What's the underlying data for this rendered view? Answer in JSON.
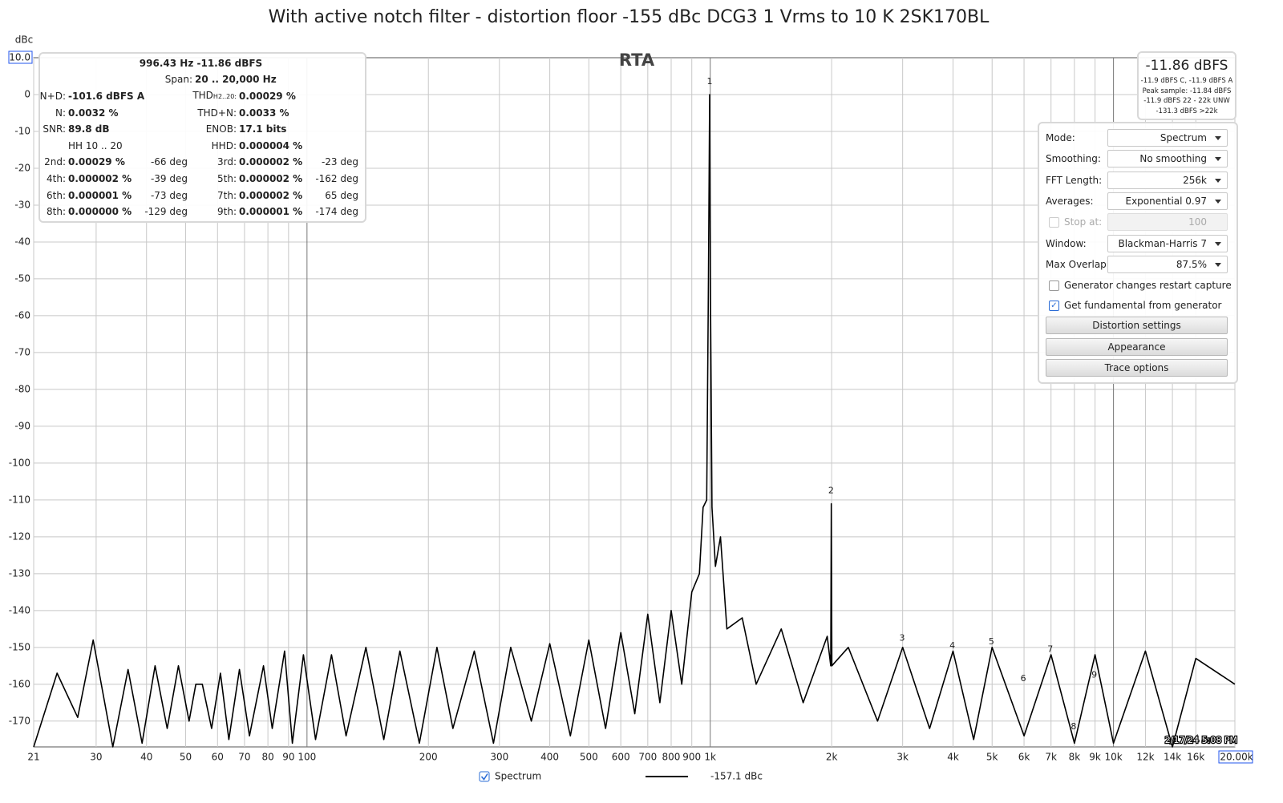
{
  "title": "With active notch filter - distortion floor -155 dBc DCG3 1 Vrms to  10 K  2SK170BL",
  "rta_label": "RTA",
  "timestamp": "2/17/24 5:08 PM",
  "chart_data": {
    "type": "line",
    "ylabel": "dBc",
    "log_x": true,
    "grid": true,
    "xlim": [
      21,
      20000
    ],
    "ylim": [
      -177,
      10
    ],
    "xticks": [
      21,
      30,
      40,
      50,
      60,
      70,
      80,
      90,
      100,
      200,
      300,
      400,
      500,
      600,
      700,
      800,
      900,
      {
        "value": 1000,
        "label": "1k"
      },
      {
        "value": 2000,
        "label": "2k"
      },
      {
        "value": 3000,
        "label": "3k"
      },
      {
        "value": 4000,
        "label": "4k"
      },
      {
        "value": 5000,
        "label": "5k"
      },
      {
        "value": 6000,
        "label": "6k"
      },
      {
        "value": 7000,
        "label": "7k"
      },
      {
        "value": 8000,
        "label": "8k"
      },
      {
        "value": 9000,
        "label": "9k"
      },
      {
        "value": 10000,
        "label": "10k"
      },
      {
        "value": 12000,
        "label": "12k"
      },
      {
        "value": 14000,
        "label": "14k"
      },
      {
        "value": 16000,
        "label": "16k"
      },
      {
        "value": 20000,
        "label": "20.00k"
      }
    ],
    "yticks": [
      {
        "value": 10,
        "label": "10.0"
      },
      0,
      -10,
      -20,
      -30,
      -40,
      -50,
      -60,
      -70,
      -80,
      -90,
      -100,
      -110,
      -120,
      -130,
      -140,
      -150,
      -160,
      -170
    ],
    "x": [
      21,
      24,
      27,
      29.5,
      33,
      36,
      39,
      42,
      45,
      48,
      51,
      53,
      55,
      58,
      61,
      64,
      68,
      72,
      78,
      82,
      88,
      92,
      98,
      105,
      115,
      125,
      140,
      155,
      170,
      190,
      210,
      230,
      260,
      290,
      320,
      360,
      400,
      450,
      500,
      550,
      600,
      650,
      700,
      750,
      800,
      850,
      900,
      940,
      960,
      980,
      990,
      996.43,
      1002,
      1010,
      1030,
      1060,
      1100,
      1200,
      1300,
      1500,
      1700,
      1950,
      1990,
      1996,
      2003,
      2200,
      2600,
      3000,
      3500,
      4000,
      4500,
      5000,
      6000,
      7000,
      8000,
      9000,
      10000,
      12000,
      14000,
      16000,
      20000
    ],
    "series": [
      {
        "name": "Spectrum",
        "color": "#000000",
        "legend_value": "-157.1 dBc",
        "values": [
          -177,
          -157,
          -169,
          -148,
          -177,
          -156,
          -176,
          -155,
          -172,
          -155,
          -170,
          -160,
          -160,
          -172,
          -157,
          -175,
          -156,
          -174,
          -155,
          -172,
          -151,
          -176,
          -152,
          -175,
          -152,
          -174,
          -150,
          -175,
          -151,
          -176,
          -150,
          -172,
          -151,
          -176,
          -150,
          -170,
          -149,
          -174,
          -148,
          -172,
          -146,
          -168,
          -141,
          -165,
          -140,
          -160,
          -135,
          -130,
          -112,
          -110,
          -50,
          0,
          -60,
          -112,
          -128,
          -120,
          -145,
          -142,
          -160,
          -145,
          -165,
          -147,
          -155,
          -111,
          -155,
          -150,
          -170,
          -150,
          -172,
          -151,
          -175,
          -150,
          -174,
          -152,
          -176,
          -152,
          -176,
          -151,
          -177,
          -153,
          -160
        ]
      }
    ],
    "harmonic_markers": [
      {
        "label": "1",
        "x": 996.43,
        "y": 3
      },
      {
        "label": "2",
        "x": 1993,
        "y": -108
      },
      {
        "label": "3",
        "x": 2990,
        "y": -148
      },
      {
        "label": "4",
        "x": 3985,
        "y": -150
      },
      {
        "label": "5",
        "x": 4980,
        "y": -149
      },
      {
        "label": "6",
        "x": 5975,
        "y": -159
      },
      {
        "label": "7",
        "x": 6970,
        "y": -151
      },
      {
        "label": "8",
        "x": 7965,
        "y": -172
      },
      {
        "label": "9",
        "x": 8960,
        "y": -158
      }
    ]
  },
  "readout": {
    "value": "-11.86 dBFS",
    "lines": [
      "-11.9 dBFS C, -11.9 dBFS A",
      "Peak sample: -11.84 dBFS",
      "-11.9 dBFS 22 - 22k UNW",
      "-131.3 dBFS >22k"
    ]
  },
  "info_panel": {
    "header": "996.43 Hz  -11.86 dBFS",
    "span_label": "Span:",
    "span_value": "20 .. 20,000 Hz",
    "rows": [
      [
        {
          "label": "N+D:",
          "value": "-101.6 dBFS A"
        },
        {
          "label": "THD",
          "sub": "H2..20:",
          "value": "0.00029 %"
        }
      ],
      [
        {
          "label": "N:",
          "value": "0.0032 %"
        },
        {
          "label": "THD+N:",
          "value": "0.0033 %"
        }
      ],
      [
        {
          "label": "SNR:",
          "value": "89.8 dB"
        },
        {
          "label": "ENOB:",
          "value": "17.1 bits"
        }
      ],
      [
        {
          "label": "HH 10 .. 20"
        },
        {
          "label": "HHD:",
          "value": "0.000004 %"
        }
      ],
      [
        {
          "label": "2nd:",
          "value": "0.00029 %",
          "phase": "-66 deg"
        },
        {
          "label": "3rd:",
          "value": "0.000002 %",
          "phase": "-23 deg"
        }
      ],
      [
        {
          "label": "4th:",
          "value": "0.000002 %",
          "phase": "-39 deg"
        },
        {
          "label": "5th:",
          "value": "0.000002 %",
          "phase": "-162 deg"
        }
      ],
      [
        {
          "label": "6th:",
          "value": "0.000001 %",
          "phase": "-73 deg"
        },
        {
          "label": "7th:",
          "value": "0.000002 %",
          "phase": "65 deg"
        }
      ],
      [
        {
          "label": "8th:",
          "value": "0.000000 %",
          "phase": "-129 deg"
        },
        {
          "label": "9th:",
          "value": "0.000001 %",
          "phase": "-174 deg"
        }
      ]
    ]
  },
  "controls": {
    "dropdowns": [
      {
        "label": "Mode:",
        "value": "Spectrum"
      },
      {
        "label": "Smoothing:",
        "value": "No smoothing"
      },
      {
        "label": "FFT Length:",
        "value": "256k"
      },
      {
        "label": "Averages:",
        "value": "Exponential 0.97"
      },
      {
        "label": "Window:",
        "value": "Blackman-Harris 7"
      },
      {
        "label": "Max Overlap:",
        "value": "87.5%"
      }
    ],
    "stop_at": {
      "label": "Stop at:",
      "value": "100",
      "checked": false
    },
    "checkboxes": [
      {
        "label": "Generator changes restart capture",
        "checked": false
      },
      {
        "label": "Get fundamental from generator",
        "checked": true
      }
    ],
    "buttons": [
      "Distortion settings",
      "Appearance",
      "Trace options"
    ]
  }
}
